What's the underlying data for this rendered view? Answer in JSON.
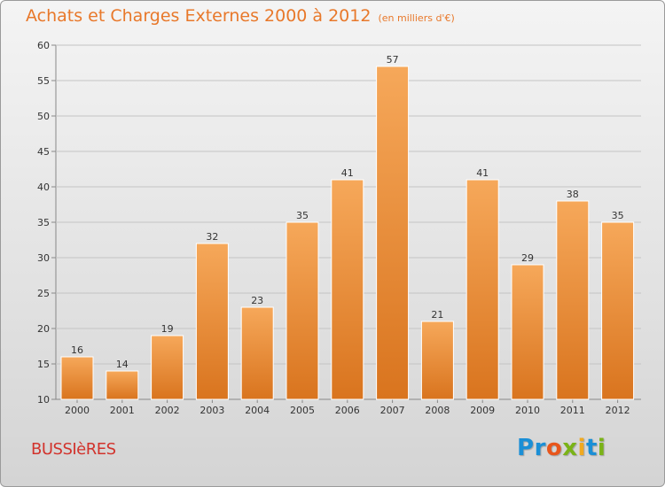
{
  "title": "Achats et Charges Externes 2000 à 2012",
  "subtitle": "(en milliers d'€)",
  "commune": "BUSSIèRES",
  "logo": {
    "letters": [
      "P",
      "r",
      "o",
      "x",
      "i",
      "t",
      "i"
    ],
    "colors": [
      "#1b8fd6",
      "#1b8fd6",
      "#e8561c",
      "#7ab317",
      "#f0a91f",
      "#1b8fd6",
      "#7ab317"
    ]
  },
  "colors": {
    "bar_top": "#f6a85a",
    "bar_bottom": "#d9741e",
    "title": "#e8782a",
    "commune": "#d2332c",
    "grid": "#c4c4c4"
  },
  "chart_data": {
    "type": "bar",
    "title": "Achats et Charges Externes 2000 à 2012",
    "subtitle": "(en milliers d'€)",
    "categories": [
      "2000",
      "2001",
      "2002",
      "2003",
      "2004",
      "2005",
      "2006",
      "2007",
      "2008",
      "2009",
      "2010",
      "2011",
      "2012"
    ],
    "values": [
      16,
      14,
      19,
      32,
      23,
      35,
      41,
      57,
      21,
      41,
      29,
      38,
      35
    ],
    "ylim": [
      10,
      60
    ],
    "yticks": [
      10,
      15,
      20,
      25,
      30,
      35,
      40,
      45,
      50,
      55,
      60
    ],
    "grid": true,
    "xlabel": "",
    "ylabel": ""
  }
}
